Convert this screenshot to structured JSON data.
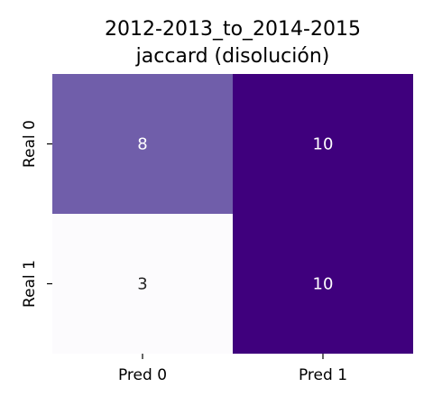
{
  "chart_data": {
    "type": "heatmap",
    "title": [
      "2012-2013_to_2014-2015",
      "jaccard (disolución)"
    ],
    "x_categories": [
      "Pred 0",
      "Pred 1"
    ],
    "y_categories": [
      "Real 0",
      "Real 1"
    ],
    "values": [
      [
        8,
        10
      ],
      [
        3,
        10
      ]
    ],
    "colormap": "Purples",
    "vmin": 3,
    "vmax": 10,
    "colorbar": false,
    "grid": false,
    "cell_text_colors": {
      "light": "#ffffff",
      "dark": "#262626"
    }
  }
}
